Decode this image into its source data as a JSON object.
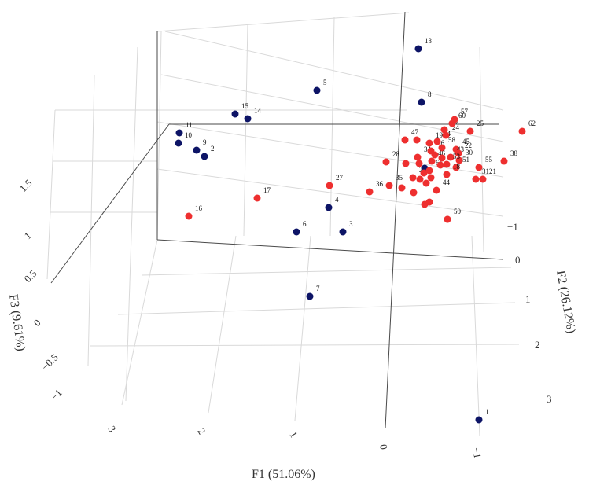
{
  "chart_data": {
    "type": "scatter",
    "projection": "3d",
    "axes": {
      "x": {
        "label": "F1 (51.06%)",
        "ticks": [
          "3",
          "2",
          "1",
          "0",
          "−1"
        ]
      },
      "y": {
        "label": "F2 (26.12%)",
        "ticks": [
          "−1",
          "0",
          "1",
          "2",
          "3"
        ]
      },
      "z": {
        "label": "F3 (9.61%)",
        "ticks": [
          "1.5",
          "1",
          "0.5",
          "0",
          "−0.5",
          "−1"
        ]
      }
    },
    "grid": true,
    "colors": {
      "group_a": "#0d1466",
      "group_b": "#ee2f2f"
    },
    "series": [
      {
        "color_key": "group_a",
        "points": [
          {
            "label": "1",
            "u": 609,
            "v": 534
          },
          {
            "label": "2",
            "u": 260,
            "v": 199
          },
          {
            "label": "3",
            "u": 436,
            "v": 295
          },
          {
            "label": "4",
            "u": 418,
            "v": 264
          },
          {
            "label": "5",
            "u": 403,
            "v": 115
          },
          {
            "label": "6",
            "u": 377,
            "v": 295
          },
          {
            "label": "7",
            "u": 394,
            "v": 377
          },
          {
            "label": "8",
            "u": 536,
            "v": 130
          },
          {
            "label": "9",
            "u": 250,
            "v": 191
          },
          {
            "label": "10",
            "u": 227,
            "v": 182
          },
          {
            "label": "11",
            "u": 228,
            "v": 169
          },
          {
            "label": "13",
            "u": 532,
            "v": 62
          },
          {
            "label": "14",
            "u": 315,
            "v": 151
          },
          {
            "label": "15",
            "u": 299,
            "v": 145
          },
          {
            "label": "",
            "u": 540,
            "v": 214
          }
        ]
      },
      {
        "color_key": "group_b",
        "points": [
          {
            "label": "16",
            "u": 240,
            "v": 275
          },
          {
            "label": "17",
            "u": 327,
            "v": 252
          },
          {
            "label": "27",
            "u": 419,
            "v": 236
          },
          {
            "label": "36",
            "u": 470,
            "v": 244
          },
          {
            "label": "35",
            "u": 495,
            "v": 236
          },
          {
            "label": "28",
            "u": 491,
            "v": 206
          },
          {
            "label": "47",
            "u": 515,
            "v": 178
          },
          {
            "label": "34",
            "u": 531,
            "v": 200
          },
          {
            "label": "19",
            "u": 546,
            "v": 182
          },
          {
            "label": "56",
            "u": 548,
            "v": 192
          },
          {
            "label": "58",
            "u": 562,
            "v": 188
          },
          {
            "label": "54",
            "u": 556,
            "v": 180
          },
          {
            "label": "24",
            "u": 567,
            "v": 172
          },
          {
            "label": "59",
            "u": 565,
            "v": 165
          },
          {
            "label": "60",
            "u": 575,
            "v": 157
          },
          {
            "label": "57",
            "u": 578,
            "v": 152
          },
          {
            "label": "25",
            "u": 598,
            "v": 167
          },
          {
            "label": "62",
            "u": 664,
            "v": 167
          },
          {
            "label": "45",
            "u": 580,
            "v": 190
          },
          {
            "label": "43",
            "u": 573,
            "v": 200
          },
          {
            "label": "22",
            "u": 583,
            "v": 195
          },
          {
            "label": "30",
            "u": 584,
            "v": 204
          },
          {
            "label": "53",
            "u": 568,
            "v": 209
          },
          {
            "label": "38",
            "u": 641,
            "v": 205
          },
          {
            "label": "55",
            "u": 609,
            "v": 213
          },
          {
            "label": "31",
            "u": 605,
            "v": 228
          },
          {
            "label": "21",
            "u": 614,
            "v": 228
          },
          {
            "label": "51",
            "u": 580,
            "v": 213
          },
          {
            "label": "2",
            "u": 525,
            "v": 226
          },
          {
            "label": "18",
            "u": 568,
            "v": 222
          },
          {
            "label": "61",
            "u": 546,
            "v": 217
          },
          {
            "label": "46",
            "u": 549,
            "v": 205
          },
          {
            "label": "44",
            "u": 555,
            "v": 242
          },
          {
            "label": "",
            "u": 530,
            "v": 178
          },
          {
            "label": "",
            "u": 516,
            "v": 208
          },
          {
            "label": "",
            "u": 534,
            "v": 228
          },
          {
            "label": "",
            "u": 539,
            "v": 220
          },
          {
            "label": "",
            "u": 542,
            "v": 233
          },
          {
            "label": "",
            "u": 511,
            "v": 239
          },
          {
            "label": "",
            "u": 526,
            "v": 245
          },
          {
            "label": "",
            "u": 548,
            "v": 226
          },
          {
            "label": "",
            "u": 540,
            "v": 260
          },
          {
            "label": "",
            "u": 546,
            "v": 257
          },
          {
            "label": "",
            "u": 569,
            "v": 279
          },
          {
            "label": "50",
            "u": 569,
            "v": 279
          },
          {
            "label": "",
            "u": 560,
            "v": 210
          },
          {
            "label": "",
            "u": 553,
            "v": 197
          },
          {
            "label": "",
            "u": 562,
            "v": 201
          },
          {
            "label": "",
            "u": 533,
            "v": 208
          }
        ]
      }
    ]
  }
}
